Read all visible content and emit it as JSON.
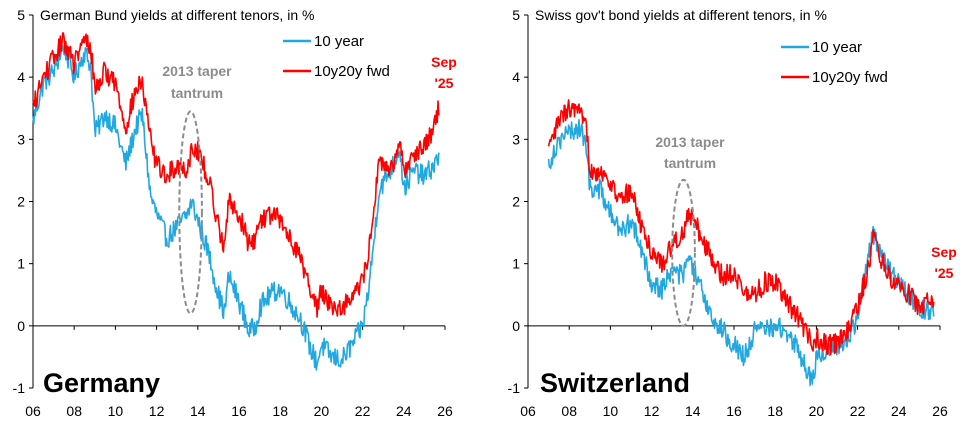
{
  "colors": {
    "ten_year": "#22a8e0",
    "fwd": "#ff0000",
    "annotation": "#8c8c8c"
  },
  "chart_data": [
    {
      "type": "line",
      "title": "German Bund yields at different tenors, in %",
      "label": "Germany",
      "xlim": [
        2006,
        2026
      ],
      "ylim": [
        -1,
        5
      ],
      "x_ticks": [
        2006,
        2008,
        2010,
        2012,
        2014,
        2016,
        2018,
        2020,
        2022,
        2024,
        2026
      ],
      "x_tick_labels": [
        "06",
        "08",
        "10",
        "12",
        "14",
        "16",
        "18",
        "20",
        "22",
        "24",
        "26"
      ],
      "y_ticks": [
        -1,
        0,
        1,
        2,
        3,
        4,
        5
      ],
      "y_tick_labels": [
        "-1",
        "0",
        "1",
        "2",
        "3",
        "4",
        "5"
      ],
      "annotation": {
        "lines": [
          "2013 taper",
          "tantrum"
        ],
        "x_range": [
          2013.1,
          2014.2
        ],
        "y_range": [
          0.2,
          3.45
        ]
      },
      "end_label": [
        "Sep",
        "'25"
      ],
      "series": [
        {
          "name": "10 year",
          "color": "#22a8e0",
          "x": [
            2006.0,
            2006.5,
            2007.0,
            2007.5,
            2008.0,
            2008.5,
            2008.8,
            2009.0,
            2009.5,
            2010.0,
            2010.5,
            2011.0,
            2011.3,
            2011.7,
            2012.0,
            2012.5,
            2013.0,
            2013.5,
            2013.7,
            2014.0,
            2014.5,
            2015.0,
            2015.3,
            2015.5,
            2016.0,
            2016.5,
            2016.8,
            2017.0,
            2017.5,
            2018.0,
            2018.5,
            2019.0,
            2019.5,
            2019.8,
            2020.0,
            2020.5,
            2021.0,
            2021.5,
            2022.0,
            2022.3,
            2022.5,
            2022.8,
            2023.0,
            2023.5,
            2023.8,
            2024.0,
            2024.5,
            2025.0,
            2025.5,
            2025.7
          ],
          "y": [
            3.3,
            3.9,
            4.1,
            4.5,
            4.0,
            4.4,
            4.2,
            3.1,
            3.4,
            3.2,
            2.6,
            3.2,
            3.4,
            2.1,
            1.8,
            1.4,
            1.6,
            1.8,
            2.0,
            1.7,
            1.2,
            0.5,
            0.2,
            0.8,
            0.4,
            -0.1,
            0.0,
            0.3,
            0.5,
            0.6,
            0.35,
            0.1,
            -0.4,
            -0.6,
            -0.3,
            -0.5,
            -0.55,
            -0.3,
            0.0,
            0.6,
            1.2,
            2.2,
            2.3,
            2.6,
            2.9,
            2.2,
            2.5,
            2.4,
            2.6,
            2.7
          ]
        },
        {
          "name": "10y20y fwd",
          "color": "#ff0000",
          "x": [
            2006.0,
            2006.5,
            2007.0,
            2007.5,
            2008.0,
            2008.5,
            2008.8,
            2009.0,
            2009.5,
            2010.0,
            2010.5,
            2011.0,
            2011.3,
            2011.7,
            2012.0,
            2012.5,
            2013.0,
            2013.5,
            2013.7,
            2014.0,
            2014.5,
            2015.0,
            2015.3,
            2015.5,
            2016.0,
            2016.5,
            2016.8,
            2017.0,
            2017.5,
            2018.0,
            2018.5,
            2019.0,
            2019.5,
            2019.8,
            2020.0,
            2020.5,
            2021.0,
            2021.5,
            2022.0,
            2022.3,
            2022.5,
            2022.8,
            2023.0,
            2023.5,
            2023.8,
            2024.0,
            2024.5,
            2025.0,
            2025.5,
            2025.7
          ],
          "y": [
            3.5,
            4.0,
            4.3,
            4.6,
            4.2,
            4.6,
            4.5,
            3.8,
            4.1,
            3.9,
            3.2,
            3.8,
            3.9,
            3.0,
            2.6,
            2.4,
            2.6,
            2.5,
            2.9,
            2.8,
            2.4,
            1.6,
            1.3,
            2.0,
            1.8,
            1.3,
            1.4,
            1.7,
            1.8,
            1.7,
            1.4,
            1.1,
            0.5,
            0.3,
            0.6,
            0.3,
            0.3,
            0.5,
            0.7,
            1.2,
            1.8,
            2.6,
            2.6,
            2.5,
            2.9,
            2.5,
            2.8,
            2.9,
            3.2,
            3.55
          ]
        }
      ]
    },
    {
      "type": "line",
      "title": "Swiss gov't bond yields at different tenors, in %",
      "label": "Switzerland",
      "xlim": [
        2006,
        2026
      ],
      "ylim": [
        -1,
        5
      ],
      "x_ticks": [
        2006,
        2008,
        2010,
        2012,
        2014,
        2016,
        2018,
        2020,
        2022,
        2024,
        2026
      ],
      "x_tick_labels": [
        "06",
        "08",
        "10",
        "12",
        "14",
        "16",
        "18",
        "20",
        "22",
        "24",
        "26"
      ],
      "y_ticks": [
        -1,
        0,
        1,
        2,
        3,
        4,
        5
      ],
      "y_tick_labels": [
        "-1",
        "0",
        "1",
        "2",
        "3",
        "4",
        "5"
      ],
      "annotation": {
        "lines": [
          "2013 taper",
          "tantrum"
        ],
        "x_range": [
          2013.0,
          2014.1
        ],
        "y_range": [
          0.0,
          2.35
        ]
      },
      "end_label": [
        "Sep",
        "'25"
      ],
      "series": [
        {
          "name": "10 year",
          "color": "#22a8e0",
          "x": [
            2007.0,
            2007.5,
            2008.0,
            2008.5,
            2008.9,
            2009.0,
            2009.5,
            2010.0,
            2010.5,
            2011.0,
            2011.5,
            2012.0,
            2012.5,
            2013.0,
            2013.5,
            2013.8,
            2014.0,
            2014.5,
            2015.0,
            2015.5,
            2016.0,
            2016.5,
            2017.0,
            2017.5,
            2018.0,
            2018.5,
            2019.0,
            2019.5,
            2019.8,
            2020.0,
            2020.5,
            2021.0,
            2021.5,
            2022.0,
            2022.5,
            2022.8,
            2023.0,
            2023.5,
            2024.0,
            2024.5,
            2025.0,
            2025.5,
            2025.7
          ],
          "y": [
            2.6,
            3.0,
            3.1,
            3.2,
            2.8,
            2.2,
            2.2,
            1.8,
            1.5,
            1.7,
            1.2,
            0.7,
            0.6,
            0.9,
            0.8,
            1.1,
            0.9,
            0.5,
            0.1,
            -0.1,
            -0.3,
            -0.5,
            -0.1,
            -0.05,
            0.0,
            -0.1,
            -0.3,
            -0.7,
            -0.9,
            -0.5,
            -0.4,
            -0.3,
            -0.2,
            0.1,
            1.1,
            1.5,
            1.3,
            0.9,
            0.7,
            0.5,
            0.3,
            0.25,
            0.25
          ]
        },
        {
          "name": "10y20y fwd",
          "color": "#ff0000",
          "x": [
            2007.0,
            2007.5,
            2008.0,
            2008.5,
            2008.9,
            2009.0,
            2009.5,
            2010.0,
            2010.5,
            2011.0,
            2011.5,
            2012.0,
            2012.5,
            2013.0,
            2013.5,
            2013.8,
            2014.0,
            2014.5,
            2015.0,
            2015.5,
            2016.0,
            2016.5,
            2017.0,
            2017.5,
            2018.0,
            2018.5,
            2019.0,
            2019.5,
            2019.8,
            2020.0,
            2020.5,
            2021.0,
            2021.5,
            2022.0,
            2022.5,
            2022.8,
            2023.0,
            2023.5,
            2024.0,
            2024.5,
            2025.0,
            2025.5,
            2025.7
          ],
          "y": [
            2.8,
            3.3,
            3.5,
            3.4,
            3.1,
            2.5,
            2.5,
            2.3,
            2.0,
            2.2,
            1.6,
            1.2,
            1.0,
            1.3,
            1.5,
            1.8,
            1.7,
            1.4,
            1.0,
            0.8,
            0.9,
            0.5,
            0.5,
            0.7,
            0.7,
            0.4,
            0.2,
            -0.1,
            -0.3,
            -0.2,
            -0.3,
            -0.3,
            -0.1,
            0.3,
            0.9,
            1.5,
            1.2,
            0.8,
            0.7,
            0.5,
            0.3,
            0.45,
            0.4
          ]
        }
      ]
    }
  ]
}
